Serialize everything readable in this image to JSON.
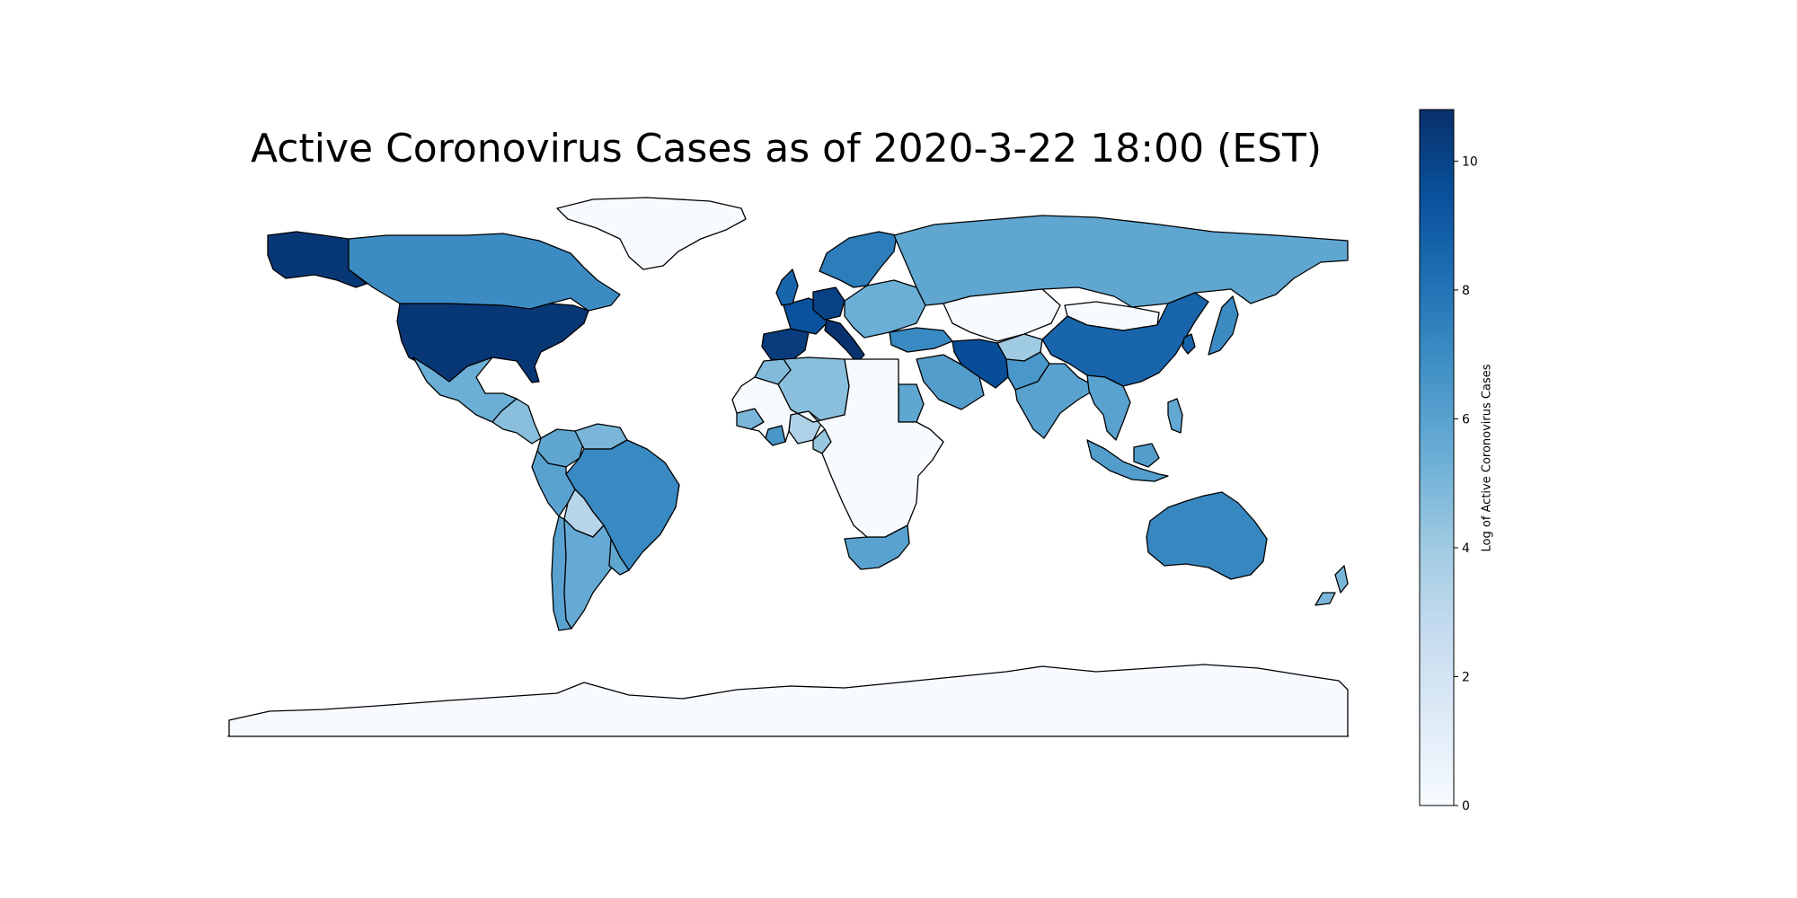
{
  "title": "Active Coronovirus Cases as of 2020-3-22 18:00 (EST)",
  "colorbar": {
    "label": "Log of Active Coronovirus Cases",
    "min": 0,
    "max": 10.8,
    "ticks": [
      "0",
      "2",
      "4",
      "6",
      "8",
      "10"
    ],
    "tick_values": [
      0,
      2,
      4,
      6,
      8,
      10
    ],
    "colormap": "Blues",
    "stops": [
      "#f7fbff",
      "#deebf7",
      "#c6dbef",
      "#9ecae1",
      "#6baed6",
      "#4292c6",
      "#2171b5",
      "#08519c",
      "#08306b"
    ]
  },
  "chart_data": {
    "type": "choropleth",
    "title": "Active Coronovirus Cases as of 2020-3-22 18:00 (EST)",
    "value_label": "Log of Active Coronovirus Cases",
    "value_range": [
      0,
      10.8
    ],
    "regions": [
      {
        "name": "United States",
        "value": 10.5
      },
      {
        "name": "Alaska",
        "value": 10.5
      },
      {
        "name": "Canada",
        "value": 7.0
      },
      {
        "name": "Greenland",
        "value": 0
      },
      {
        "name": "Mexico",
        "value": 5.4
      },
      {
        "name": "Central America",
        "value": 4.6
      },
      {
        "name": "Colombia",
        "value": 5.8
      },
      {
        "name": "Venezuela",
        "value": 5.0
      },
      {
        "name": "Brazil",
        "value": 7.1
      },
      {
        "name": "Peru",
        "value": 6.0
      },
      {
        "name": "Bolivia",
        "value": 3.2
      },
      {
        "name": "Chile",
        "value": 6.0
      },
      {
        "name": "Argentina",
        "value": 5.6
      },
      {
        "name": "Uruguay",
        "value": 5.8
      },
      {
        "name": "Spain",
        "value": 10.3
      },
      {
        "name": "France",
        "value": 9.4
      },
      {
        "name": "Germany",
        "value": 10.1
      },
      {
        "name": "Italy",
        "value": 10.7
      },
      {
        "name": "United Kingdom",
        "value": 8.6
      },
      {
        "name": "Scandinavia",
        "value": 7.6
      },
      {
        "name": "Eastern Europe",
        "value": 5.4
      },
      {
        "name": "Russia",
        "value": 5.8
      },
      {
        "name": "Kazakhstan",
        "value": 0
      },
      {
        "name": "Mongolia",
        "value": 0
      },
      {
        "name": "China",
        "value": 8.6
      },
      {
        "name": "Japan",
        "value": 7.0
      },
      {
        "name": "South Korea",
        "value": 8.7
      },
      {
        "name": "Iran",
        "value": 9.6
      },
      {
        "name": "Saudi Arabia",
        "value": 6.2
      },
      {
        "name": "Turkey",
        "value": 7.1
      },
      {
        "name": "Afghanistan",
        "value": 4.0
      },
      {
        "name": "Pakistan",
        "value": 6.5
      },
      {
        "name": "India",
        "value": 6.0
      },
      {
        "name": "Southeast Asia",
        "value": 6.0
      },
      {
        "name": "Indonesia",
        "value": 6.2
      },
      {
        "name": "Philippines",
        "value": 5.7
      },
      {
        "name": "Australia",
        "value": 7.2
      },
      {
        "name": "New Zealand",
        "value": 5.0
      },
      {
        "name": "Egypt",
        "value": 5.8
      },
      {
        "name": "Algeria",
        "value": 4.6
      },
      {
        "name": "Morocco",
        "value": 4.8
      },
      {
        "name": "Senegal",
        "value": 5.0
      },
      {
        "name": "Ghana",
        "value": 6.5
      },
      {
        "name": "Nigeria",
        "value": 3.5
      },
      {
        "name": "Cameroon",
        "value": 4.2
      },
      {
        "name": "South Africa",
        "value": 6.0
      },
      {
        "name": "Central Africa",
        "value": 0
      },
      {
        "name": "Antarctica",
        "value": 0
      }
    ]
  }
}
